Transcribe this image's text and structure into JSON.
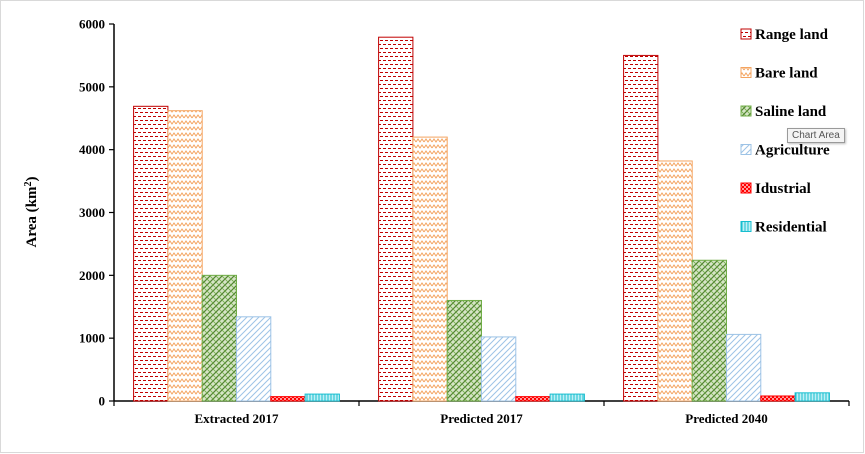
{
  "chart_data": {
    "type": "bar",
    "categories": [
      "Extracted 2017",
      "Predicted 2017",
      "Predicted 2040"
    ],
    "series": [
      {
        "name": "Range land",
        "values": [
          4690,
          5790,
          5500
        ],
        "color": "#c00000",
        "pattern": "brick"
      },
      {
        "name": "Bare land",
        "values": [
          4620,
          4200,
          3820
        ],
        "color": "#f4a460",
        "pattern": "zigzag"
      },
      {
        "name": "Saline land",
        "values": [
          2000,
          1600,
          2240
        ],
        "color": "#70ad47",
        "pattern": "diagonal-cross"
      },
      {
        "name": "Agriculture",
        "values": [
          1340,
          1020,
          1060
        ],
        "color": "#9dc3e6",
        "pattern": "diagonal"
      },
      {
        "name": "Idustrial",
        "values": [
          70,
          70,
          80
        ],
        "color": "#ff0000",
        "pattern": "checker"
      },
      {
        "name": "Residential",
        "values": [
          110,
          110,
          130
        ],
        "color": "#17becf",
        "pattern": "vertical"
      }
    ],
    "xlabel": "",
    "ylabel": "Area (km",
    "ylabel_superscript": "2",
    "ylabel_suffix": ")",
    "ylim": [
      0,
      6000
    ],
    "yticks": [
      0,
      1000,
      2000,
      3000,
      4000,
      5000,
      6000
    ],
    "legend_position": "right",
    "grid": false
  },
  "tooltip": "Chart Area"
}
